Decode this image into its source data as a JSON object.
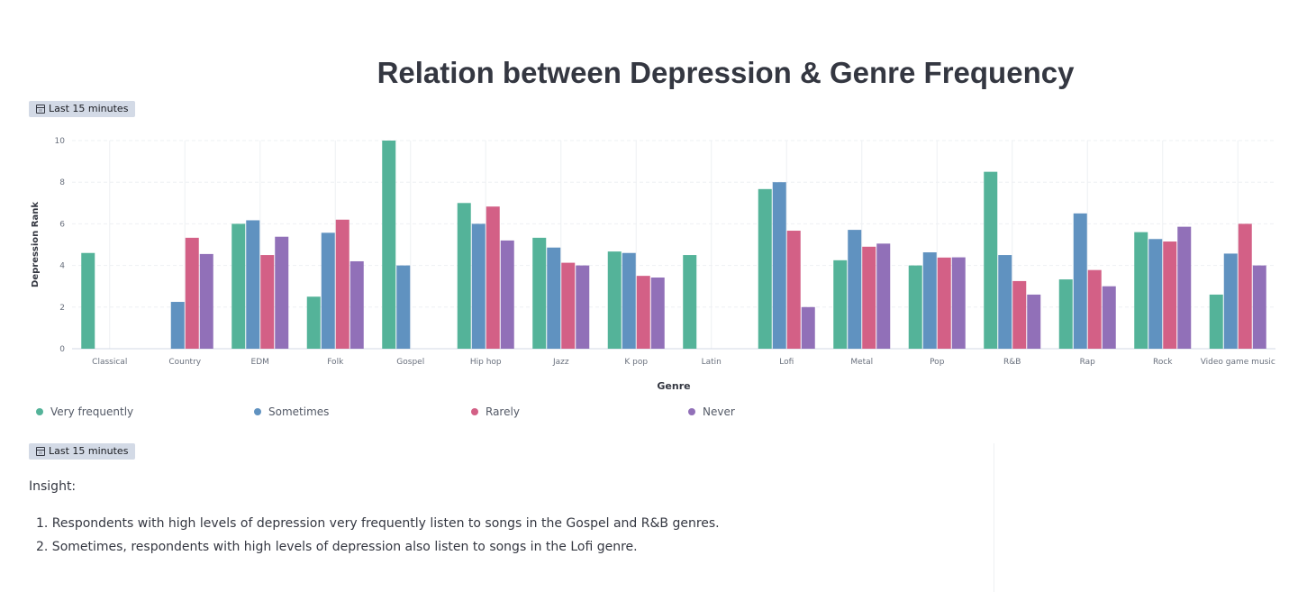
{
  "dashboard": {
    "title": "Relation between Depression & Genre Frequency"
  },
  "badges": {
    "chart_time": "Last 15 minutes",
    "insight_time": "Last 15 minutes"
  },
  "colors": {
    "very_frequently": "#54b399",
    "sometimes": "#6092c0",
    "rarely": "#d36086",
    "never": "#9170b8",
    "grid": "#eef0f3",
    "axis_text": "#69707d"
  },
  "chart_data": {
    "type": "bar",
    "title": "",
    "xlabel": "Genre",
    "ylabel": "Depression Rank",
    "ylim": [
      0,
      10
    ],
    "yticks": [
      "0",
      "2",
      "4",
      "6",
      "8",
      "10"
    ],
    "grid": true,
    "legend_position": "bottom",
    "categories": [
      "Classical",
      "Country",
      "EDM",
      "Folk",
      "Gospel",
      "Hip hop",
      "Jazz",
      "K pop",
      "Latin",
      "Lofi",
      "Metal",
      "Pop",
      "R&B",
      "Rap",
      "Rock",
      "Video game music"
    ],
    "series": [
      {
        "name": "Very frequently",
        "color": "#54b399",
        "values": [
          4.6,
          null,
          6.0,
          2.5,
          10.0,
          7.0,
          5.33,
          4.67,
          4.5,
          7.67,
          4.25,
          4.0,
          8.5,
          3.33,
          5.6,
          2.6
        ]
      },
      {
        "name": "Sometimes",
        "color": "#6092c0",
        "values": [
          null,
          2.25,
          6.17,
          5.57,
          4.0,
          6.0,
          4.86,
          4.6,
          null,
          8.0,
          5.71,
          4.63,
          4.5,
          6.5,
          5.27,
          4.57
        ]
      },
      {
        "name": "Rarely",
        "color": "#d36086",
        "values": [
          null,
          5.33,
          4.5,
          6.2,
          null,
          6.83,
          4.13,
          3.5,
          null,
          5.67,
          4.9,
          4.38,
          3.25,
          3.78,
          5.15,
          6.0
        ]
      },
      {
        "name": "Never",
        "color": "#9170b8",
        "values": [
          null,
          4.55,
          5.38,
          4.2,
          null,
          5.2,
          4.0,
          3.42,
          null,
          2.0,
          5.05,
          4.39,
          2.6,
          3.0,
          5.86,
          4.0
        ]
      }
    ]
  },
  "insight": {
    "heading": "Insight:",
    "items": [
      "1. Respondents with high levels of depression very frequently listen to songs in the Gospel and R&B genres.",
      "2. Sometimes, respondents with high levels of depression also listen to songs in the Lofi genre."
    ]
  }
}
